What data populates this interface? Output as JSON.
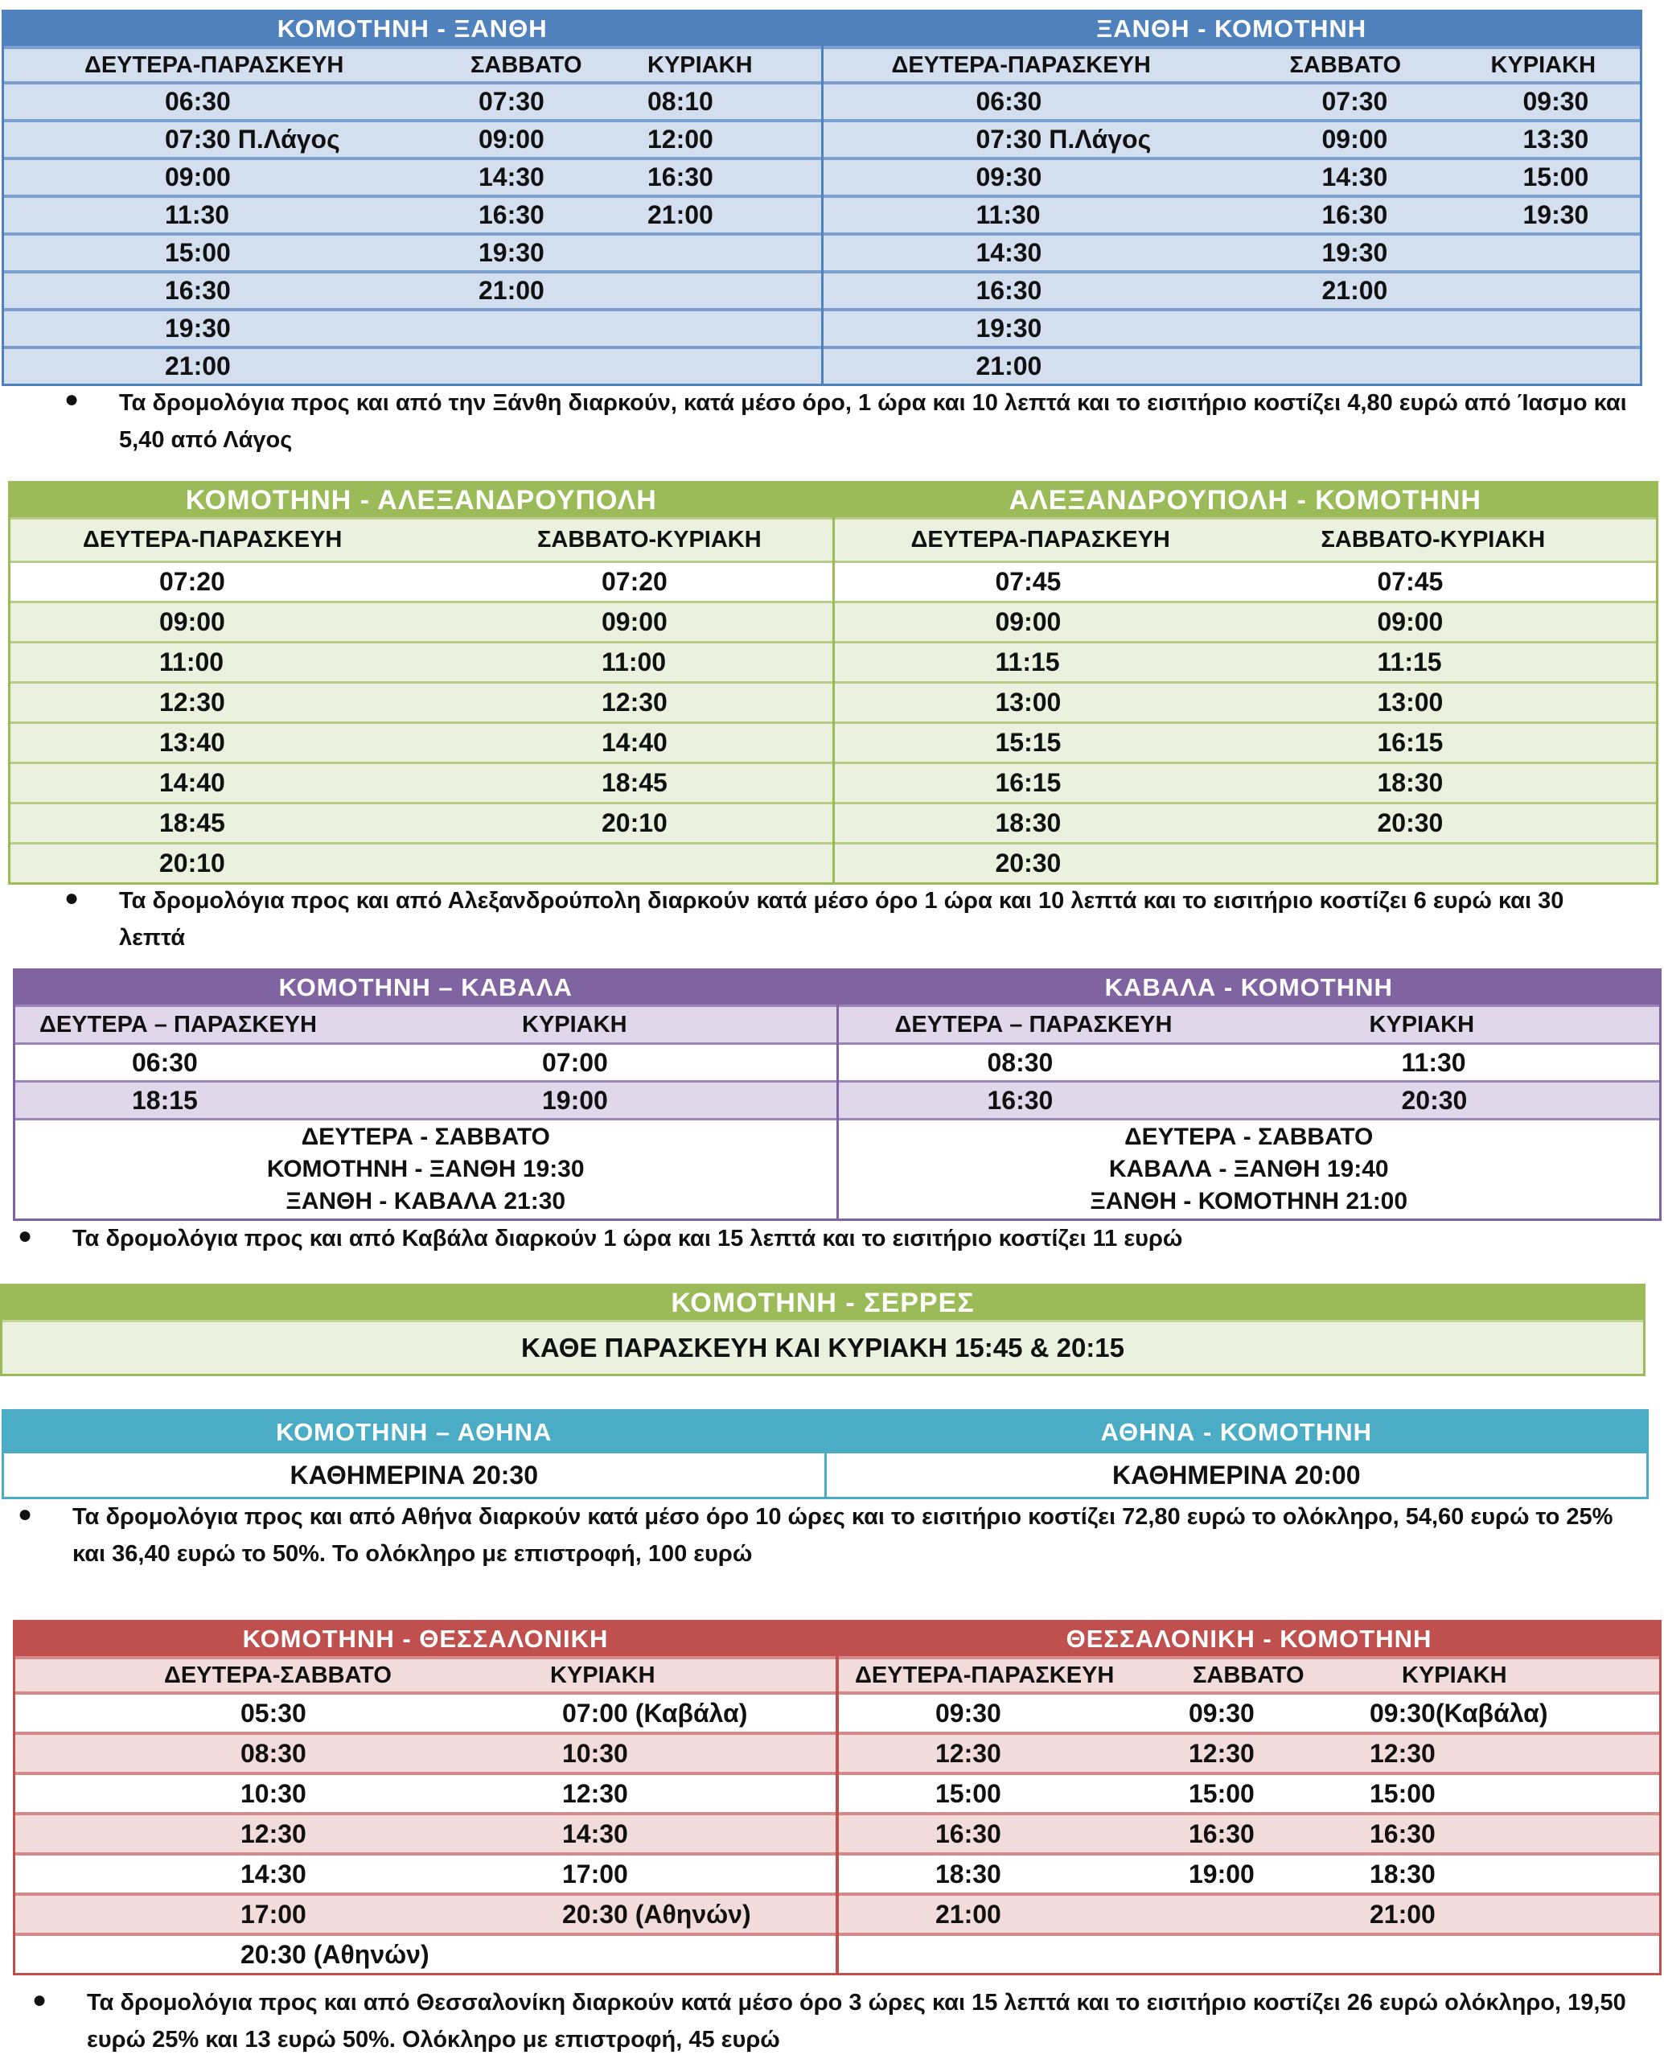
{
  "colors": {
    "blue": "#4f81bd",
    "green": "#9bbb59",
    "purple": "#8064a2",
    "cyan": "#4bacc6",
    "red": "#c0504d"
  },
  "xanthi": {
    "left": {
      "title": "ΚΟΜΟΤΗΝΗ - ΞΑΝΘΗ",
      "columns": [
        "ΔΕΥΤΕΡΑ-ΠΑΡΑΣΚΕΥΗ",
        "ΣΑΒΒΑΤΟ",
        "ΚΥΡΙΑΚΗ"
      ],
      "rows": [
        [
          "06:30",
          "07:30",
          "08:10"
        ],
        [
          "07:30  Π.Λάγος",
          "09:00",
          "12:00"
        ],
        [
          "09:00",
          "14:30",
          "16:30"
        ],
        [
          "11:30",
          "16:30",
          "21:00"
        ],
        [
          "15:00",
          "19:30",
          ""
        ],
        [
          "16:30",
          "21:00",
          ""
        ],
        [
          "19:30",
          "",
          ""
        ],
        [
          "21:00",
          "",
          ""
        ]
      ]
    },
    "right": {
      "title": "ΞΑΝΘΗ - ΚΟΜΟΤΗΝΗ",
      "columns": [
        "ΔΕΥΤΕΡΑ-ΠΑΡΑΣΚΕΥΗ",
        "ΣΑΒΒΑΤΟ",
        "ΚΥΡΙΑΚΗ"
      ],
      "rows": [
        [
          "06:30",
          "07:30",
          "09:30"
        ],
        [
          "07:30 Π.Λάγος",
          "09:00",
          "13:30"
        ],
        [
          "09:30",
          "14:30",
          "15:00"
        ],
        [
          "11:30",
          "16:30",
          "19:30"
        ],
        [
          "14:30",
          "19:30",
          ""
        ],
        [
          "16:30",
          "21:00",
          ""
        ],
        [
          "19:30",
          "",
          ""
        ],
        [
          "21:00",
          "",
          ""
        ]
      ]
    },
    "note": "Τα δρομολόγια προς και από την Ξάνθη διαρκούν, κατά μέσο όρο, 1 ώρα και 10 λεπτά και το εισιτήριο κοστίζει 4,80 ευρώ από Ίασμο και 5,40 από Λάγος"
  },
  "alex": {
    "left": {
      "title": "ΚΟΜΟΤΗΝΗ - ΑΛΕΞΑΝΔΡΟΥΠΟΛΗ",
      "columns": [
        "ΔΕΥΤΕΡΑ-ΠΑΡΑΣΚΕΥΗ",
        "ΣΑΒΒΑΤΟ-ΚΥΡΙΑΚΗ"
      ],
      "rows": [
        [
          "07:20",
          "07:20"
        ],
        [
          "09:00",
          "09:00"
        ],
        [
          "11:00",
          "11:00"
        ],
        [
          "12:30",
          "12:30"
        ],
        [
          "13:40",
          "14:40"
        ],
        [
          "14:40",
          "18:45"
        ],
        [
          "18:45",
          "20:10"
        ],
        [
          "20:10",
          ""
        ]
      ]
    },
    "right": {
      "title": "ΑΛΕΞΑΝΔΡΟΥΠΟΛΗ - ΚΟΜΟΤΗΝΗ",
      "columns": [
        "ΔΕΥΤΕΡΑ-ΠΑΡΑΣΚΕΥΗ",
        "ΣΑΒΒΑΤΟ-ΚΥΡΙΑΚΗ"
      ],
      "rows": [
        [
          "07:45",
          "07:45"
        ],
        [
          "09:00",
          "09:00"
        ],
        [
          "11:15",
          "11:15"
        ],
        [
          "13:00",
          "13:00"
        ],
        [
          "15:15",
          "16:15"
        ],
        [
          "16:15",
          "18:30"
        ],
        [
          "18:30",
          "20:30"
        ],
        [
          "20:30",
          ""
        ]
      ]
    },
    "note": "Τα δρομολόγια προς και από Αλεξανδρούπολη διαρκούν κατά μέσο όρο 1 ώρα και 10 λεπτά και το εισιτήριο κοστίζει 6 ευρώ και 30 λεπτά"
  },
  "kavala": {
    "left": {
      "title": "ΚΟΜΟΤΗΝΗ – ΚΑΒΑΛΑ",
      "columns": [
        "ΔΕΥΤΕΡΑ – ΠΑΡΑΣΚΕΥΗ",
        "ΚΥΡΙΑΚΗ"
      ],
      "rows": [
        [
          "06:30",
          "07:00"
        ],
        [
          "18:15",
          "19:00"
        ]
      ],
      "extra": [
        "ΔΕΥΤΕΡΑ - ΣΑΒΒΑΤΟ",
        "ΚΟΜΟΤΗΝΗ - ΞΑΝΘΗ 19:30",
        "ΞΑΝΘΗ - ΚΑΒΑΛΑ 21:30"
      ]
    },
    "right": {
      "title": "ΚΑΒΑΛΑ - ΚΟΜΟΤΗΝΗ",
      "columns": [
        "ΔΕΥΤΕΡΑ – ΠΑΡΑΣΚΕΥΗ",
        "ΚΥΡΙΑΚΗ"
      ],
      "rows": [
        [
          "08:30",
          "11:30"
        ],
        [
          "16:30",
          "20:30"
        ]
      ],
      "extra": [
        "ΔΕΥΤΕΡΑ - ΣΑΒΒΑΤΟ",
        "ΚΑΒΑΛΑ - ΞΑΝΘΗ 19:40",
        "ΞΑΝΘΗ - ΚΟΜΟΤΗΝΗ 21:00"
      ]
    },
    "note": "Τα δρομολόγια προς και από Καβάλα διαρκούν 1 ώρα και 15 λεπτά και το εισιτήριο κοστίζει 11 ευρώ"
  },
  "serres": {
    "title": "ΚΟΜΟΤΗΝΗ - ΣΕΡΡΕΣ",
    "body": "ΚΑΘΕ ΠΑΡΑΣΚΕΥΗ ΚΑΙ ΚΥΡΙΑΚΗ 15:45  &  20:15"
  },
  "athens": {
    "left": {
      "title": "ΚΟΜΟΤΗΝΗ – ΑΘΗΝΑ",
      "value": "ΚΑΘΗΜΕΡΙΝΑ   20:30"
    },
    "right": {
      "title": "ΑΘΗΝΑ - ΚΟΜΟΤΗΝΗ",
      "value": "ΚΑΘΗΜΕΡΙΝΑ   20:00"
    },
    "note": "Τα δρομολόγια προς και από Αθήνα διαρκούν κατά μέσο όρο 10 ώρες και το εισιτήριο κοστίζει 72,80 ευρώ το ολόκληρο, 54,60 ευρώ το 25% και 36,40 ευρώ το 50%. Το ολόκληρο με επιστροφή, 100 ευρώ"
  },
  "thes": {
    "left": {
      "title": "ΚΟΜΟΤΗΝΗ - ΘΕΣΣΑΛΟΝΙΚΗ",
      "columns": [
        "ΔΕΥΤΕΡΑ-ΣΑΒΒΑΤΟ",
        "ΚΥΡΙΑΚΗ"
      ],
      "rows": [
        [
          "05:30",
          "07:00 (Καβάλα)"
        ],
        [
          "08:30",
          "10:30"
        ],
        [
          "10:30",
          "12:30"
        ],
        [
          "12:30",
          "14:30"
        ],
        [
          "14:30",
          "17:00"
        ],
        [
          "17:00",
          "20:30 (Αθηνών)"
        ],
        [
          "20:30  (Αθηνών)",
          ""
        ]
      ]
    },
    "right": {
      "title": "ΘΕΣΣΑΛΟΝΙΚΗ - ΚΟΜΟΤΗΝΗ",
      "columns": [
        "ΔΕΥΤΕΡΑ-ΠΑΡΑΣΚΕΥΗ",
        "ΣΑΒΒΑΤΟ",
        "ΚΥΡΙΑΚΗ"
      ],
      "rows": [
        [
          "09:30",
          "09:30",
          "09:30(Καβάλα)"
        ],
        [
          "12:30",
          "12:30",
          "12:30"
        ],
        [
          "15:00",
          "15:00",
          "15:00"
        ],
        [
          "16:30",
          "16:30",
          "16:30"
        ],
        [
          "18:30",
          "19:00",
          "18:30"
        ],
        [
          "21:00",
          "",
          "21:00"
        ],
        [
          "",
          "",
          ""
        ]
      ]
    },
    "note": "Τα δρομολόγια προς και από Θεσσαλονίκη διαρκούν κατά μέσο όρο 3 ώρες και 15 λεπτά και το εισιτήριο κοστίζει 26 ευρώ ολόκληρο, 19,50 ευρώ 25% και 13 ευρώ 50%. Ολόκληρο με επιστροφή, 45 ευρώ"
  }
}
